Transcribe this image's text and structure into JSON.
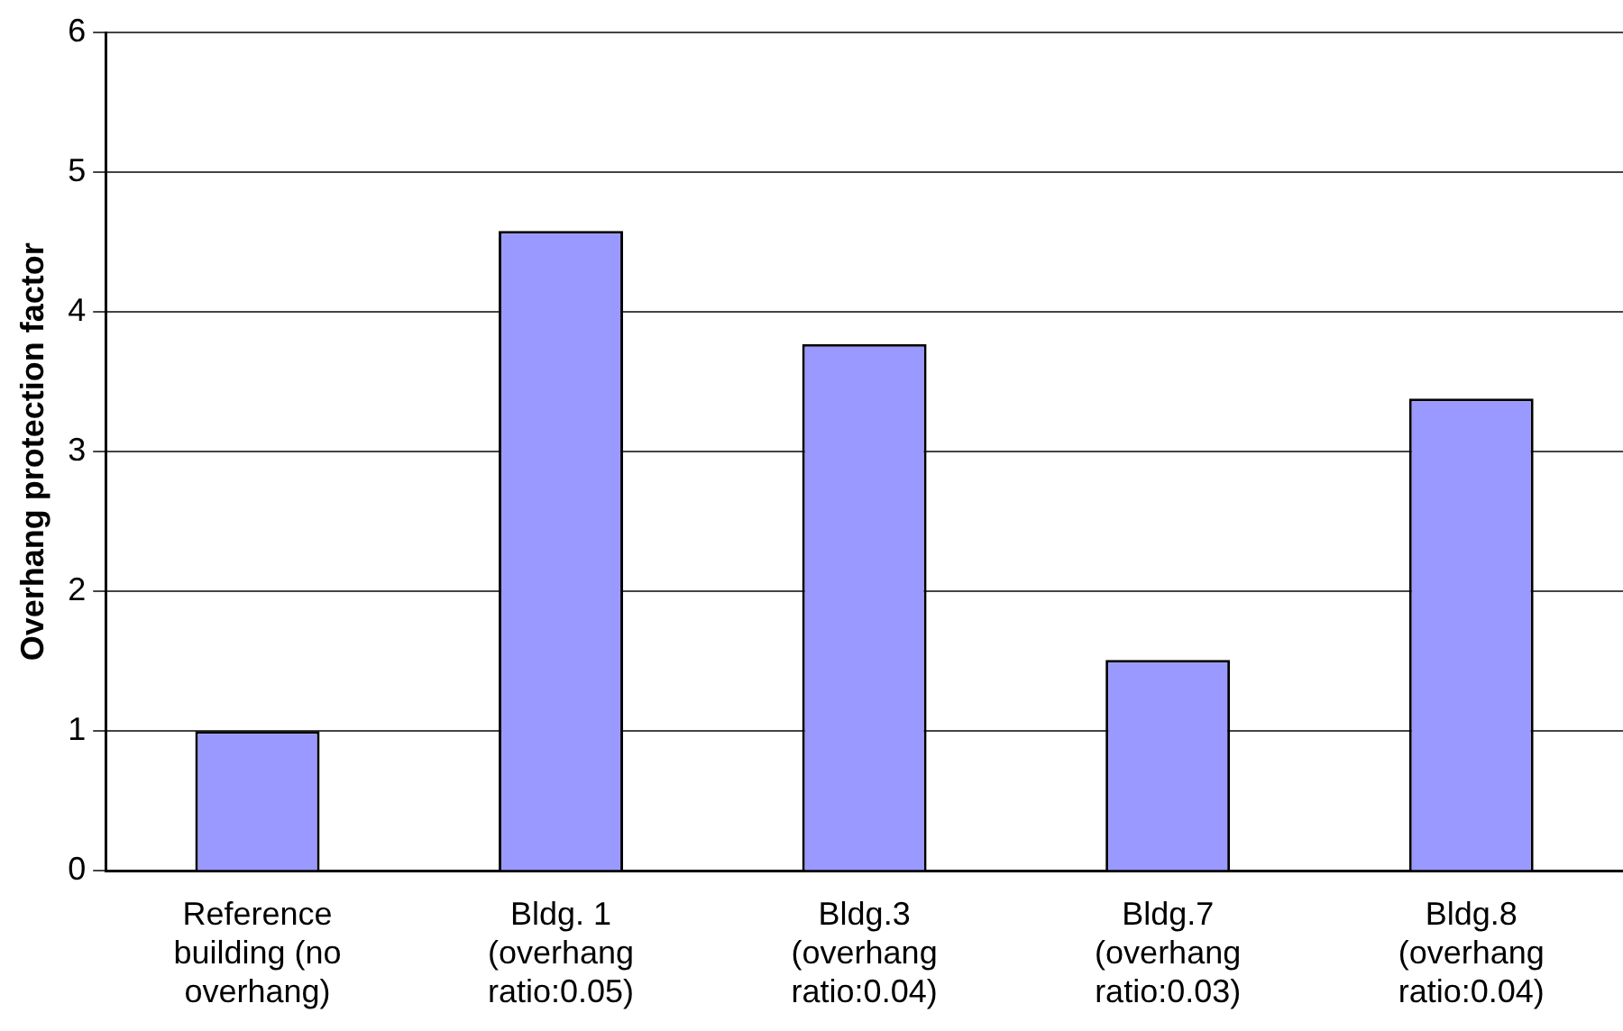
{
  "chart_data": {
    "type": "bar",
    "ylabel": "Overhang protection factor",
    "categories": [
      "Reference\nbuilding (no\noverhang)",
      "Bldg. 1\n(overhang\nratio:0.05)",
      "Bldg.3\n(overhang\nratio:0.04)",
      "Bldg.7\n(overhang\nratio:0.03)",
      "Bldg.8\n(overhang\nratio:0.04)"
    ],
    "values": [
      1.0,
      4.58,
      3.77,
      1.51,
      3.38
    ],
    "color": "#9999ff",
    "ylim": [
      0,
      6
    ],
    "yticks": [
      0,
      1,
      2,
      3,
      4,
      5,
      6
    ],
    "grid": "y",
    "legend": false
  }
}
